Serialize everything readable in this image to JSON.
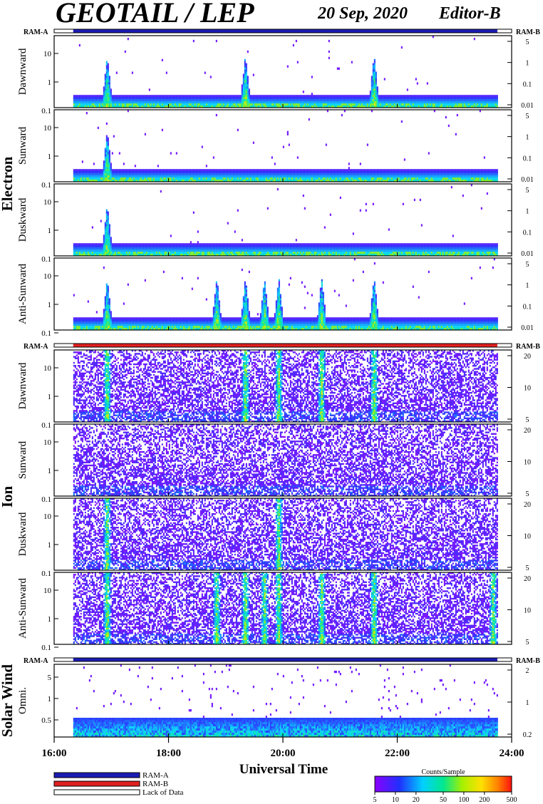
{
  "header": {
    "title": "GEOTAIL / LEP",
    "date": "20 Sep, 2020",
    "editor": "Editor-B"
  },
  "groups": [
    {
      "label": "Electron"
    },
    {
      "label": "Ion"
    },
    {
      "label": "Solar Wind"
    }
  ],
  "ram_labels": {
    "left": "RAM-A",
    "right": "RAM-B"
  },
  "colors": {
    "ram_a": "#1b1bb4",
    "ram_b": "#e02020",
    "lack_of_data": "#ffffff",
    "frame": "#000000"
  },
  "chart_data": {
    "type": "heatmap",
    "x_label": "Universal Time",
    "x_range": [
      "16:00",
      "24:00"
    ],
    "x_ticks": [
      "16:00",
      "18:00",
      "20:00",
      "22:00",
      "24:00"
    ],
    "data_coverage": [
      "16:20",
      "23:45"
    ],
    "ram_bars": [
      {
        "section": "Electron",
        "mode": "RAM-A"
      },
      {
        "section": "Ion",
        "mode": "RAM-B"
      },
      {
        "section": "Solar Wind",
        "mode": "RAM-A"
      }
    ],
    "panels": [
      {
        "group": "Electron",
        "label": "Dawnward",
        "left_ticks": [
          "10",
          "1",
          "0.1"
        ],
        "right_ticks": [
          "5",
          "1",
          "0.1",
          "0.01"
        ],
        "kind": "electron",
        "bursts": [
          "16:55",
          "19:20",
          "21:35"
        ]
      },
      {
        "group": "Electron",
        "label": "Sunward",
        "left_ticks": [
          "10",
          "1",
          "0.1"
        ],
        "right_ticks": [
          "5",
          "1",
          "0.1",
          "0.01"
        ],
        "kind": "electron",
        "bursts": [
          "16:55"
        ]
      },
      {
        "group": "Electron",
        "label": "Duskward",
        "left_ticks": [
          "10",
          "1",
          "0.1"
        ],
        "right_ticks": [
          "5",
          "1",
          "0.1",
          "0.01"
        ],
        "kind": "electron",
        "bursts": [
          "16:55"
        ]
      },
      {
        "group": "Electron",
        "label": "Anti-Sunward",
        "left_ticks": [
          "10",
          "1",
          "0.1"
        ],
        "right_ticks": [
          "5",
          "1",
          "0.1",
          "0.01"
        ],
        "kind": "electron",
        "bursts": [
          "16:55",
          "18:50",
          "19:20",
          "19:40",
          "19:55",
          "20:40",
          "21:35"
        ]
      },
      {
        "group": "Ion",
        "label": "Dawnward",
        "left_ticks": [
          "10",
          "1",
          "0.1"
        ],
        "right_ticks": [
          "20",
          "10",
          "5"
        ],
        "kind": "ion",
        "bursts": [
          "16:55",
          "19:20",
          "19:55",
          "20:40",
          "21:35"
        ]
      },
      {
        "group": "Ion",
        "label": "Sunward",
        "left_ticks": [
          "10",
          "1",
          "0.1"
        ],
        "right_ticks": [
          "20",
          "10",
          "5"
        ],
        "kind": "ion",
        "bursts": []
      },
      {
        "group": "Ion",
        "label": "Duskward",
        "left_ticks": [
          "10",
          "1",
          "0.1"
        ],
        "right_ticks": [
          "20",
          "10",
          "5"
        ],
        "kind": "ion",
        "bursts": [
          "16:55",
          "19:55"
        ]
      },
      {
        "group": "Ion",
        "label": "Anti-Sunward",
        "left_ticks": [
          "10",
          "1",
          "0.1"
        ],
        "right_ticks": [
          "20",
          "10",
          "5"
        ],
        "kind": "ion",
        "bursts": [
          "16:55",
          "18:50",
          "19:20",
          "19:40",
          "19:55",
          "20:40",
          "21:35",
          "23:40"
        ]
      },
      {
        "group": "Solar Wind",
        "label": "Omni.",
        "left_ticks": [
          "5",
          "1",
          "0.5"
        ],
        "right_ticks": [
          "2",
          "1",
          "0.2"
        ],
        "kind": "solarwind",
        "bursts": []
      }
    ],
    "legend": [
      {
        "label": "RAM-A",
        "color": "#1b1bb4"
      },
      {
        "label": "RAM-B",
        "color": "#e02020"
      },
      {
        "label": "Lack of Data",
        "color": "#ffffff"
      }
    ],
    "colorbar": {
      "title": "Counts/Sample",
      "ticks": [
        "5",
        "10",
        "20",
        "50",
        "100",
        "200",
        "500"
      ],
      "scale": "log",
      "range": [
        5,
        500
      ]
    }
  }
}
